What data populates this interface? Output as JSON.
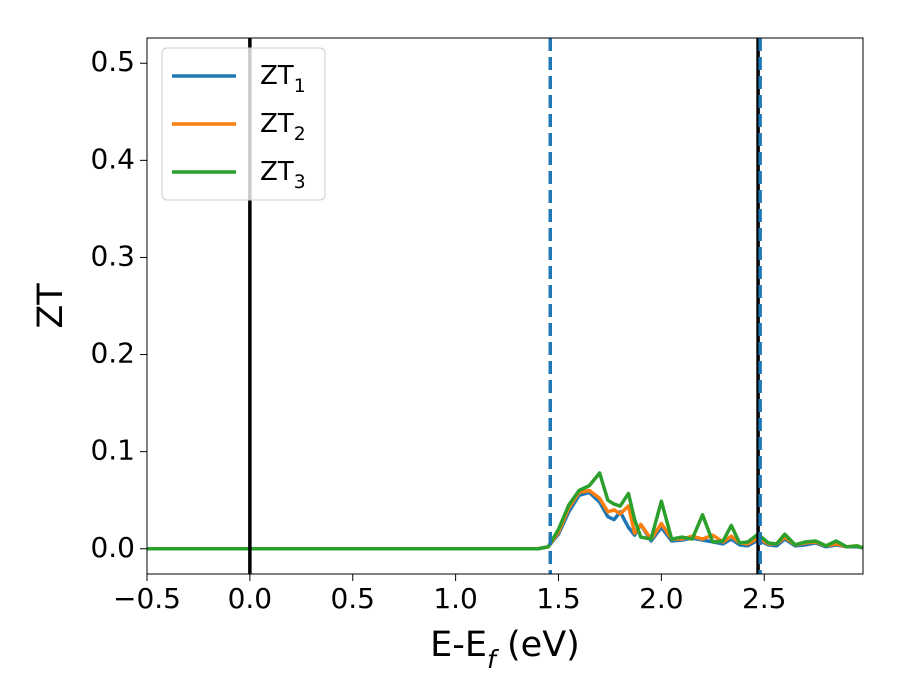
{
  "chart_data": {
    "type": "line",
    "xlabel": "E-E_f (eV)",
    "ylabel": "ZT",
    "x": [
      -0.5,
      0,
      0.5,
      1.0,
      1.3,
      1.4,
      1.45,
      1.5,
      1.55,
      1.6,
      1.65,
      1.7,
      1.74,
      1.77,
      1.8,
      1.84,
      1.87,
      1.9,
      1.95,
      2.0,
      2.05,
      2.1,
      2.15,
      2.2,
      2.25,
      2.3,
      2.34,
      2.38,
      2.42,
      2.47,
      2.52,
      2.56,
      2.6,
      2.65,
      2.7,
      2.75,
      2.8,
      2.85,
      2.9,
      2.95,
      2.98
    ],
    "series": [
      {
        "name": "ZT_1",
        "color": "#1f77b4",
        "values": [
          0,
          0,
          0,
          0,
          0,
          0,
          0.002,
          0.015,
          0.038,
          0.055,
          0.058,
          0.048,
          0.033,
          0.03,
          0.038,
          0.022,
          0.014,
          0.025,
          0.008,
          0.022,
          0.008,
          0.009,
          0.011,
          0.009,
          0.007,
          0.005,
          0.01,
          0.004,
          0.003,
          0.009,
          0.004,
          0.003,
          0.01,
          0.003,
          0.004,
          0.006,
          0.002,
          0.004,
          0.002,
          0.002,
          0.001
        ]
      },
      {
        "name": "ZT_2",
        "color": "#ff7f0e",
        "values": [
          0,
          0,
          0,
          0,
          0,
          0,
          0.002,
          0.017,
          0.042,
          0.058,
          0.06,
          0.052,
          0.038,
          0.04,
          0.036,
          0.044,
          0.016,
          0.025,
          0.01,
          0.026,
          0.01,
          0.01,
          0.013,
          0.01,
          0.014,
          0.007,
          0.013,
          0.006,
          0.005,
          0.011,
          0.005,
          0.005,
          0.012,
          0.004,
          0.006,
          0.007,
          0.003,
          0.005,
          0.002,
          0.003,
          0.001
        ]
      },
      {
        "name": "ZT_3",
        "color": "#2ca02c",
        "values": [
          0,
          0,
          0,
          0,
          0,
          0,
          0.002,
          0.02,
          0.045,
          0.06,
          0.065,
          0.078,
          0.05,
          0.046,
          0.044,
          0.057,
          0.03,
          0.012,
          0.01,
          0.049,
          0.01,
          0.012,
          0.01,
          0.035,
          0.007,
          0.008,
          0.024,
          0.006,
          0.007,
          0.015,
          0.006,
          0.005,
          0.015,
          0.004,
          0.007,
          0.008,
          0.003,
          0.008,
          0.002,
          0.003,
          0.001
        ]
      }
    ],
    "vlines": [
      {
        "x": 0,
        "color": "#000000",
        "style": "solid"
      },
      {
        "x": 1.46,
        "color": "#1f77b4",
        "style": "dashed"
      },
      {
        "x": 2.47,
        "color": "#000000",
        "style": "solid"
      },
      {
        "x": 2.48,
        "color": "#1f77b4",
        "style": "dashed"
      }
    ],
    "xlim": [
      -0.5,
      2.98
    ],
    "ylim": [
      -0.026,
      0.526
    ],
    "xticks": [
      {
        "value": -0.5,
        "label": "−0.5"
      },
      {
        "value": 0,
        "label": "0.0"
      },
      0.5,
      {
        "value": 1,
        "label": "1.0"
      },
      1.5,
      {
        "value": 2,
        "label": "2.0"
      },
      2.5
    ],
    "yticks": [
      {
        "value": 0,
        "label": "0.0"
      },
      0.1,
      0.2,
      0.3,
      0.4,
      0.5
    ],
    "grid": false,
    "legend": "upper left"
  }
}
